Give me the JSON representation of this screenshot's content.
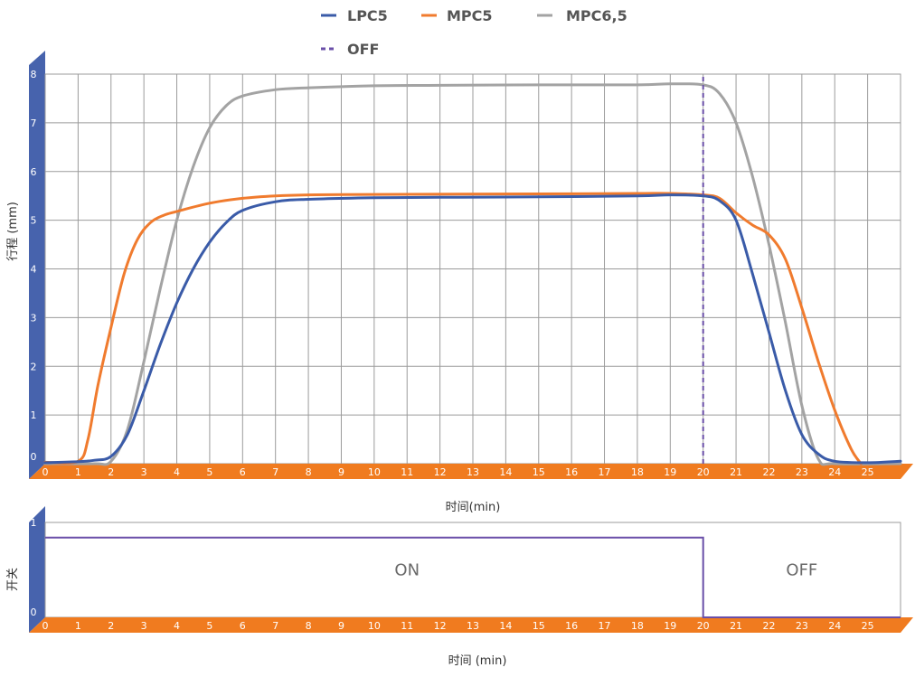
{
  "colors": {
    "LPC5": "#3a5ba8",
    "MPC5": "#f07b2e",
    "MPC6,5": "#a3a3a3",
    "OFF": "#6a4fa8",
    "axis_orange": "#f07b1f",
    "axis_blue": "#4763ad",
    "grid": "#9b9b9b"
  },
  "chart_data": [
    {
      "type": "line",
      "xlabel": "时间(min)",
      "ylabel": "行程 (mm)",
      "xlim": [
        0,
        26
      ],
      "ylim": [
        0,
        8
      ],
      "grid": true,
      "legend_position": "top-center",
      "x_ticks": [
        "0",
        "1",
        "2",
        "3",
        "4",
        "5",
        "6",
        "7",
        "8",
        "9",
        "10",
        "11",
        "12",
        "13",
        "14",
        "15",
        "16",
        "17",
        "18",
        "19",
        "20",
        "21",
        "22",
        "23",
        "24",
        "25"
      ],
      "y_ticks": [
        "0",
        "1",
        "2",
        "3",
        "4",
        "5",
        "6",
        "7",
        "8"
      ],
      "legend": [
        "LPC5",
        "MPC5",
        "MPC6,5",
        "OFF"
      ],
      "series": [
        {
          "name": "LPC5",
          "x": [
            0,
            1,
            1.5,
            2,
            2.5,
            3,
            3.5,
            4,
            4.5,
            5,
            5.5,
            6,
            7,
            8,
            10,
            12,
            15,
            18,
            19,
            20,
            20.5,
            21,
            21.5,
            22,
            22.5,
            23,
            23.5,
            24,
            25,
            26
          ],
          "y": [
            0.02,
            0.04,
            0.07,
            0.15,
            0.6,
            1.5,
            2.45,
            3.3,
            4.0,
            4.55,
            4.95,
            5.2,
            5.38,
            5.43,
            5.46,
            5.47,
            5.48,
            5.5,
            5.52,
            5.5,
            5.4,
            5.0,
            3.9,
            2.7,
            1.5,
            0.6,
            0.2,
            0.05,
            0.02,
            0.05
          ]
        },
        {
          "name": "MPC5",
          "x": [
            0,
            1,
            1.3,
            1.6,
            2,
            2.4,
            2.8,
            3.2,
            3.6,
            4,
            5,
            6,
            7,
            8,
            10,
            15,
            18,
            19,
            20,
            20.5,
            21,
            21.5,
            22,
            22.5,
            23,
            23.5,
            24,
            24.5,
            24.8
          ],
          "y": [
            0.03,
            0.05,
            0.5,
            1.6,
            2.8,
            3.9,
            4.6,
            4.95,
            5.1,
            5.18,
            5.35,
            5.45,
            5.5,
            5.52,
            5.53,
            5.54,
            5.55,
            5.55,
            5.52,
            5.45,
            5.15,
            4.9,
            4.7,
            4.2,
            3.2,
            2.1,
            1.1,
            0.3,
            0
          ]
        },
        {
          "name": "MPC6,5",
          "x": [
            0,
            1.5,
            2,
            2.5,
            3,
            3.5,
            4,
            4.5,
            5,
            5.5,
            6,
            7,
            8,
            10,
            12,
            15,
            18,
            19,
            20,
            20.5,
            21,
            21.5,
            22,
            22.5,
            23,
            23.5,
            24,
            26
          ],
          "y": [
            0,
            0,
            0.05,
            0.7,
            2.1,
            3.6,
            5.0,
            6.1,
            6.9,
            7.35,
            7.55,
            7.68,
            7.72,
            7.76,
            7.77,
            7.78,
            7.78,
            7.8,
            7.78,
            7.6,
            7.0,
            5.9,
            4.5,
            2.9,
            1.2,
            0.1,
            0,
            0
          ]
        },
        {
          "name": "OFF",
          "style": "dashed",
          "x": [
            20,
            20
          ],
          "y": [
            0,
            8
          ]
        }
      ]
    },
    {
      "type": "line",
      "xlabel": "时间 (min)",
      "ylabel": "开关",
      "xlim": [
        0,
        26
      ],
      "ylim": [
        0,
        1
      ],
      "grid": false,
      "x_ticks": [
        "0",
        "1",
        "2",
        "3",
        "4",
        "5",
        "6",
        "7",
        "8",
        "9",
        "10",
        "11",
        "12",
        "13",
        "14",
        "15",
        "16",
        "17",
        "18",
        "19",
        "20",
        "21",
        "22",
        "23",
        "24",
        "25"
      ],
      "y_ticks": [
        "0",
        "1"
      ],
      "series": [
        {
          "x": [
            0,
            20,
            20,
            26
          ],
          "y": [
            0.84,
            0.84,
            0,
            0
          ]
        }
      ],
      "annotations": [
        {
          "text": "ON",
          "x": 11
        },
        {
          "text": "OFF",
          "x": 23
        }
      ]
    }
  ]
}
